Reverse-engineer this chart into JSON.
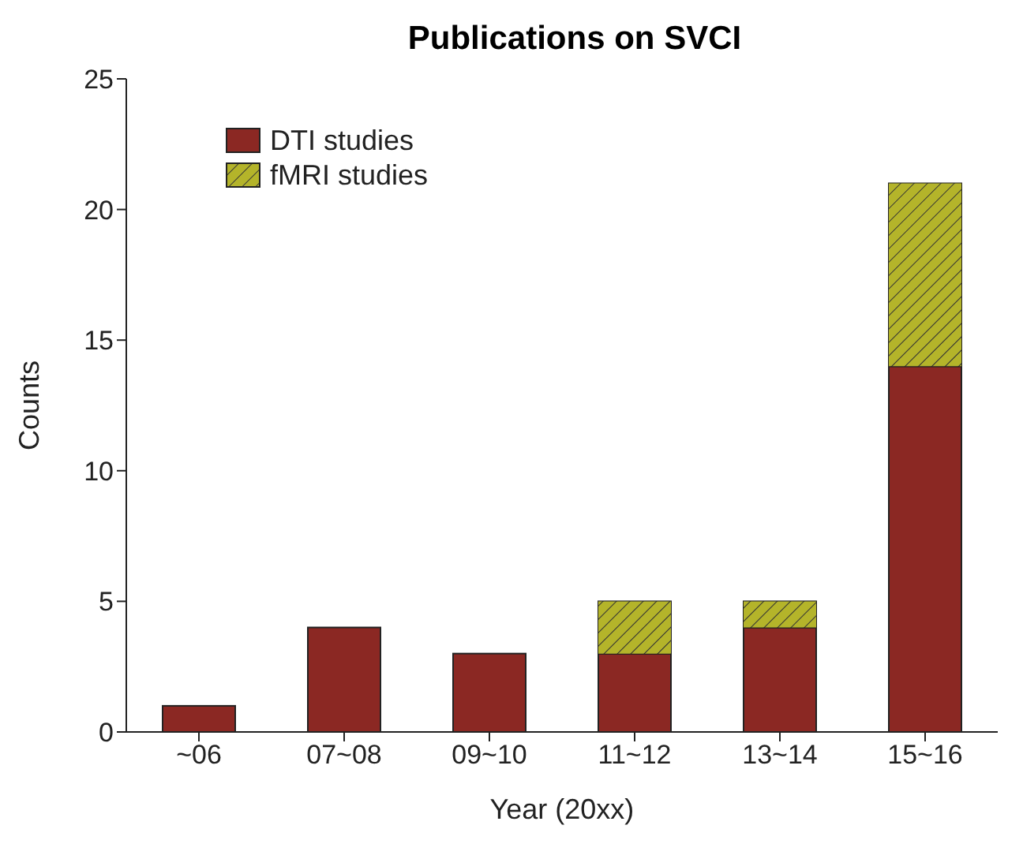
{
  "chart_data": {
    "type": "bar",
    "title": "Publications on SVCI",
    "xlabel": "Year (20xx)",
    "ylabel": "Counts",
    "categories": [
      "~06",
      "07~08",
      "09~10",
      "11~12",
      "13~14",
      "15~16"
    ],
    "series": [
      {
        "name": "DTI studies",
        "color": "#8b2823",
        "values": [
          1,
          4,
          3,
          3,
          4,
          14
        ]
      },
      {
        "name": "fMRI studies",
        "color": "#b4b42a",
        "values": [
          0,
          0,
          0,
          2,
          1,
          7
        ]
      }
    ],
    "stacked": true,
    "ylim": [
      0,
      25
    ],
    "yticks": [
      0,
      5,
      10,
      15,
      20,
      25
    ],
    "grid": false,
    "legend": "top left"
  }
}
